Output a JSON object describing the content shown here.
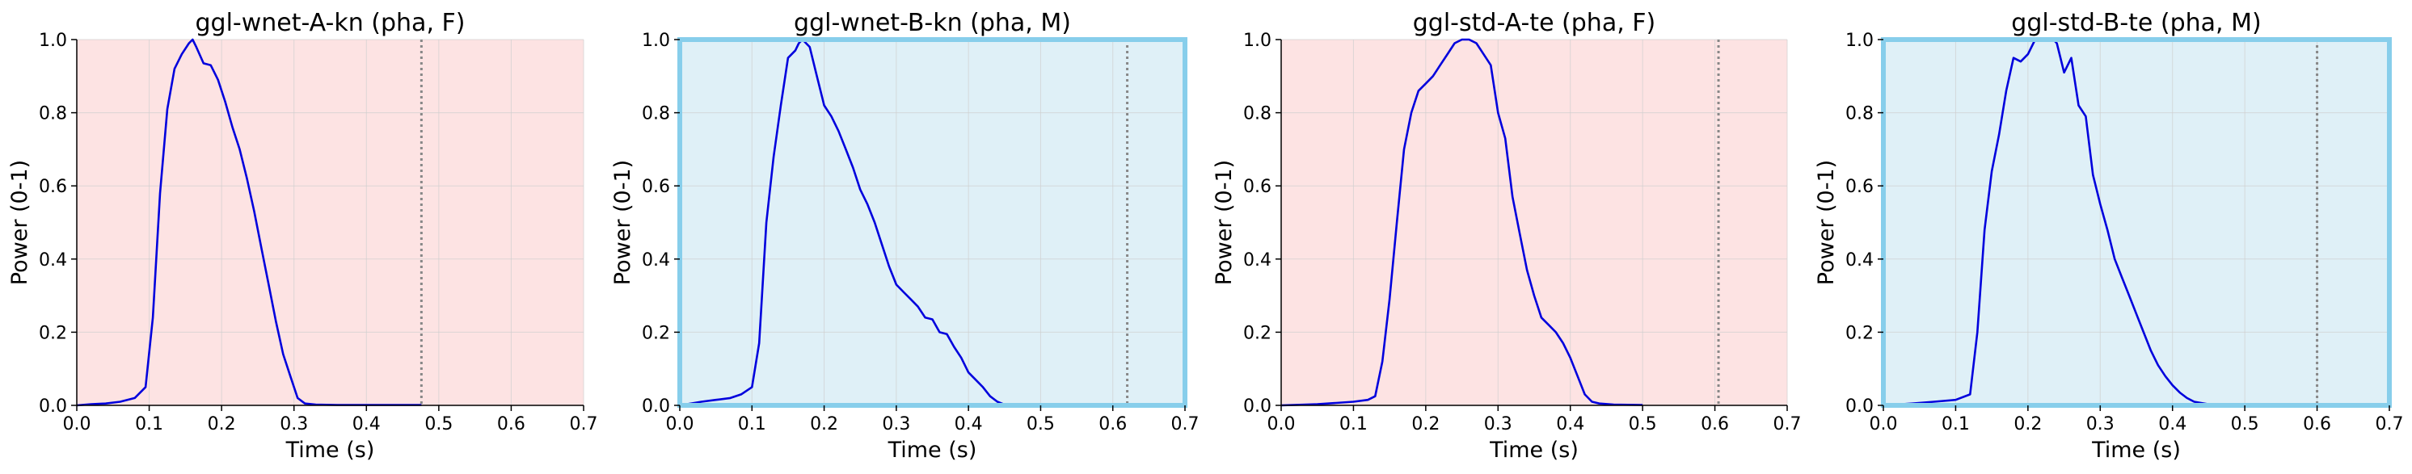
{
  "colors": {
    "female_bg": "#fde3e3",
    "male_bg": "#dff0f7",
    "male_frame": "#87ceeb",
    "line": "#0000dd",
    "marker": "#888888",
    "grid": "#cfcfcf"
  },
  "chart_data": [
    {
      "type": "line",
      "title": "ggl-wnet-A-kn (pha, F)",
      "xlabel": "Time (s)",
      "ylabel": "Power (0-1)",
      "xlim": [
        0,
        0.7
      ],
      "ylim": [
        0,
        1
      ],
      "xticks": [
        "0.0",
        "0.1",
        "0.2",
        "0.3",
        "0.4",
        "0.5",
        "0.6",
        "0.7"
      ],
      "yticks": [
        "0.0",
        "0.2",
        "0.4",
        "0.6",
        "0.8",
        "1.0"
      ],
      "background": "female",
      "grid": true,
      "marker_x": 0.476,
      "x": [
        0,
        0.02,
        0.04,
        0.06,
        0.08,
        0.095,
        0.105,
        0.115,
        0.125,
        0.135,
        0.145,
        0.155,
        0.16,
        0.165,
        0.175,
        0.185,
        0.195,
        0.205,
        0.215,
        0.225,
        0.235,
        0.245,
        0.255,
        0.265,
        0.275,
        0.285,
        0.295,
        0.305,
        0.315,
        0.33,
        0.36,
        0.4,
        0.45,
        0.476
      ],
      "y": [
        0,
        0.003,
        0.005,
        0.01,
        0.02,
        0.05,
        0.24,
        0.58,
        0.81,
        0.92,
        0.96,
        0.99,
        1.0,
        0.98,
        0.935,
        0.93,
        0.89,
        0.83,
        0.76,
        0.7,
        0.62,
        0.53,
        0.43,
        0.33,
        0.23,
        0.14,
        0.08,
        0.02,
        0.005,
        0.002,
        0.001,
        0.001,
        0.001,
        0.001
      ]
    },
    {
      "type": "line",
      "title": "ggl-wnet-B-kn (pha, M)",
      "xlabel": "Time (s)",
      "ylabel": "Power (0-1)",
      "xlim": [
        0,
        0.7
      ],
      "ylim": [
        0,
        1
      ],
      "xticks": [
        "0.0",
        "0.1",
        "0.2",
        "0.3",
        "0.4",
        "0.5",
        "0.6",
        "0.7"
      ],
      "yticks": [
        "0.0",
        "0.2",
        "0.4",
        "0.6",
        "0.8",
        "1.0"
      ],
      "background": "male",
      "grid": true,
      "marker_x": 0.62,
      "x": [
        0,
        0.03,
        0.05,
        0.07,
        0.085,
        0.1,
        0.11,
        0.12,
        0.13,
        0.14,
        0.15,
        0.16,
        0.165,
        0.17,
        0.18,
        0.19,
        0.2,
        0.21,
        0.22,
        0.23,
        0.24,
        0.25,
        0.26,
        0.27,
        0.28,
        0.29,
        0.3,
        0.31,
        0.32,
        0.33,
        0.34,
        0.35,
        0.36,
        0.37,
        0.38,
        0.39,
        0.4,
        0.41,
        0.42,
        0.43,
        0.44,
        0.45
      ],
      "y": [
        0,
        0.01,
        0.015,
        0.02,
        0.03,
        0.05,
        0.17,
        0.5,
        0.68,
        0.82,
        0.95,
        0.97,
        0.99,
        1.0,
        0.98,
        0.9,
        0.82,
        0.79,
        0.75,
        0.7,
        0.65,
        0.59,
        0.55,
        0.5,
        0.44,
        0.38,
        0.33,
        0.31,
        0.29,
        0.27,
        0.24,
        0.235,
        0.2,
        0.195,
        0.16,
        0.13,
        0.09,
        0.07,
        0.05,
        0.025,
        0.01,
        0.002
      ]
    },
    {
      "type": "line",
      "title": "ggl-std-A-te (pha, F)",
      "xlabel": "Time (s)",
      "ylabel": "Power (0-1)",
      "xlim": [
        0,
        0.7
      ],
      "ylim": [
        0,
        1
      ],
      "xticks": [
        "0.0",
        "0.1",
        "0.2",
        "0.3",
        "0.4",
        "0.5",
        "0.6",
        "0.7"
      ],
      "yticks": [
        "0.0",
        "0.2",
        "0.4",
        "0.6",
        "0.8",
        "1.0"
      ],
      "background": "female",
      "grid": true,
      "marker_x": 0.605,
      "x": [
        0,
        0.05,
        0.1,
        0.12,
        0.13,
        0.14,
        0.15,
        0.16,
        0.17,
        0.18,
        0.19,
        0.2,
        0.21,
        0.22,
        0.23,
        0.24,
        0.25,
        0.26,
        0.27,
        0.28,
        0.29,
        0.3,
        0.31,
        0.32,
        0.33,
        0.34,
        0.35,
        0.36,
        0.37,
        0.38,
        0.39,
        0.4,
        0.41,
        0.42,
        0.43,
        0.44,
        0.46,
        0.5
      ],
      "y": [
        0,
        0.003,
        0.01,
        0.015,
        0.025,
        0.12,
        0.29,
        0.5,
        0.7,
        0.8,
        0.86,
        0.88,
        0.9,
        0.93,
        0.96,
        0.99,
        1.0,
        1.0,
        0.99,
        0.96,
        0.93,
        0.8,
        0.73,
        0.57,
        0.47,
        0.37,
        0.3,
        0.24,
        0.22,
        0.2,
        0.17,
        0.13,
        0.08,
        0.03,
        0.01,
        0.005,
        0.002,
        0.001
      ]
    },
    {
      "type": "line",
      "title": "ggl-std-B-te (pha, M)",
      "xlabel": "Time (s)",
      "ylabel": "Power (0-1)",
      "xlim": [
        0,
        0.7
      ],
      "ylim": [
        0,
        1
      ],
      "xticks": [
        "0.0",
        "0.1",
        "0.2",
        "0.3",
        "0.4",
        "0.5",
        "0.6",
        "0.7"
      ],
      "yticks": [
        "0.0",
        "0.2",
        "0.4",
        "0.6",
        "0.8",
        "1.0"
      ],
      "background": "male",
      "grid": true,
      "marker_x": 0.6,
      "x": [
        0,
        0.04,
        0.07,
        0.1,
        0.12,
        0.13,
        0.14,
        0.15,
        0.16,
        0.17,
        0.18,
        0.19,
        0.2,
        0.21,
        0.22,
        0.23,
        0.235,
        0.24,
        0.25,
        0.26,
        0.27,
        0.28,
        0.29,
        0.3,
        0.31,
        0.32,
        0.33,
        0.34,
        0.35,
        0.36,
        0.37,
        0.38,
        0.39,
        0.4,
        0.41,
        0.42,
        0.43,
        0.45,
        0.5
      ],
      "y": [
        0,
        0.005,
        0.01,
        0.015,
        0.03,
        0.2,
        0.48,
        0.64,
        0.74,
        0.86,
        0.95,
        0.94,
        0.96,
        1.0,
        1.0,
        1.0,
        1.0,
        0.99,
        0.91,
        0.95,
        0.82,
        0.79,
        0.63,
        0.55,
        0.48,
        0.4,
        0.35,
        0.3,
        0.25,
        0.2,
        0.15,
        0.11,
        0.08,
        0.055,
        0.035,
        0.02,
        0.01,
        0.003,
        0.001
      ]
    }
  ]
}
